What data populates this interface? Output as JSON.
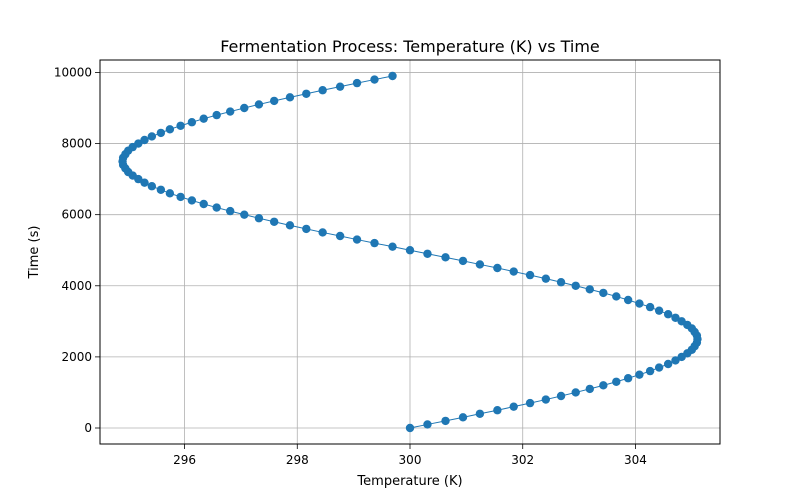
{
  "chart_data": {
    "type": "line",
    "title": "Fermentation Process: Temperature (K) vs Time",
    "xlabel": "Temperature (K)",
    "ylabel": "Time (s)",
    "xlim": [
      294.5,
      305.5
    ],
    "ylim": [
      -450,
      10350
    ],
    "xticks": [
      296,
      298,
      300,
      302,
      304
    ],
    "xtick_labels": [
      "296",
      "298",
      "300",
      "302",
      "304"
    ],
    "yticks": [
      0,
      2000,
      4000,
      6000,
      8000,
      10000
    ],
    "ytick_labels": [
      "0",
      "2000",
      "4000",
      "6000",
      "8000",
      "10000"
    ],
    "grid": true,
    "series": [
      {
        "color": "#1f77b4",
        "marker": "circle",
        "x": [
          300.0,
          300.31,
          300.63,
          300.94,
          301.24,
          301.55,
          301.84,
          302.13,
          302.41,
          302.68,
          302.94,
          303.19,
          303.43,
          303.66,
          303.87,
          304.07,
          304.26,
          304.42,
          304.58,
          304.71,
          304.82,
          304.92,
          305.0,
          305.05,
          305.09,
          305.1,
          305.09,
          305.05,
          305.0,
          304.92,
          304.82,
          304.71,
          304.58,
          304.42,
          304.26,
          304.07,
          303.87,
          303.66,
          303.43,
          303.19,
          302.94,
          302.68,
          302.41,
          302.13,
          301.84,
          301.55,
          301.24,
          300.94,
          300.63,
          300.31,
          300.0,
          299.69,
          299.37,
          299.06,
          298.76,
          298.45,
          298.16,
          297.87,
          297.59,
          297.32,
          297.06,
          296.81,
          296.57,
          296.34,
          296.13,
          295.93,
          295.74,
          295.58,
          295.42,
          295.29,
          295.18,
          295.08,
          295.0,
          294.95,
          294.91,
          294.9,
          294.91,
          294.95,
          295.0,
          295.08,
          295.18,
          295.29,
          295.42,
          295.58,
          295.74,
          295.93,
          296.13,
          296.34,
          296.57,
          296.81,
          297.06,
          297.32,
          297.59,
          297.87,
          298.16,
          298.45,
          298.76,
          299.06,
          299.37,
          299.69
        ],
        "y": [
          0,
          100,
          200,
          300,
          400,
          500,
          600,
          700,
          800,
          900,
          1000,
          1100,
          1200,
          1300,
          1400,
          1500,
          1600,
          1700,
          1800,
          1900,
          2000,
          2100,
          2200,
          2300,
          2400,
          2500,
          2600,
          2700,
          2800,
          2900,
          3000,
          3100,
          3200,
          3300,
          3400,
          3500,
          3600,
          3700,
          3800,
          3900,
          4000,
          4100,
          4200,
          4300,
          4400,
          4500,
          4600,
          4700,
          4800,
          4900,
          5000,
          5100,
          5200,
          5300,
          5400,
          5500,
          5600,
          5700,
          5800,
          5900,
          6000,
          6100,
          6200,
          6300,
          6400,
          6500,
          6600,
          6700,
          6800,
          6900,
          7000,
          7100,
          7200,
          7300,
          7400,
          7500,
          7600,
          7700,
          7800,
          7900,
          8000,
          8100,
          8200,
          8300,
          8400,
          8500,
          8600,
          8700,
          8800,
          8900,
          9000,
          9100,
          9200,
          9300,
          9400,
          9500,
          9600,
          9700,
          9800,
          9900
        ]
      }
    ]
  }
}
